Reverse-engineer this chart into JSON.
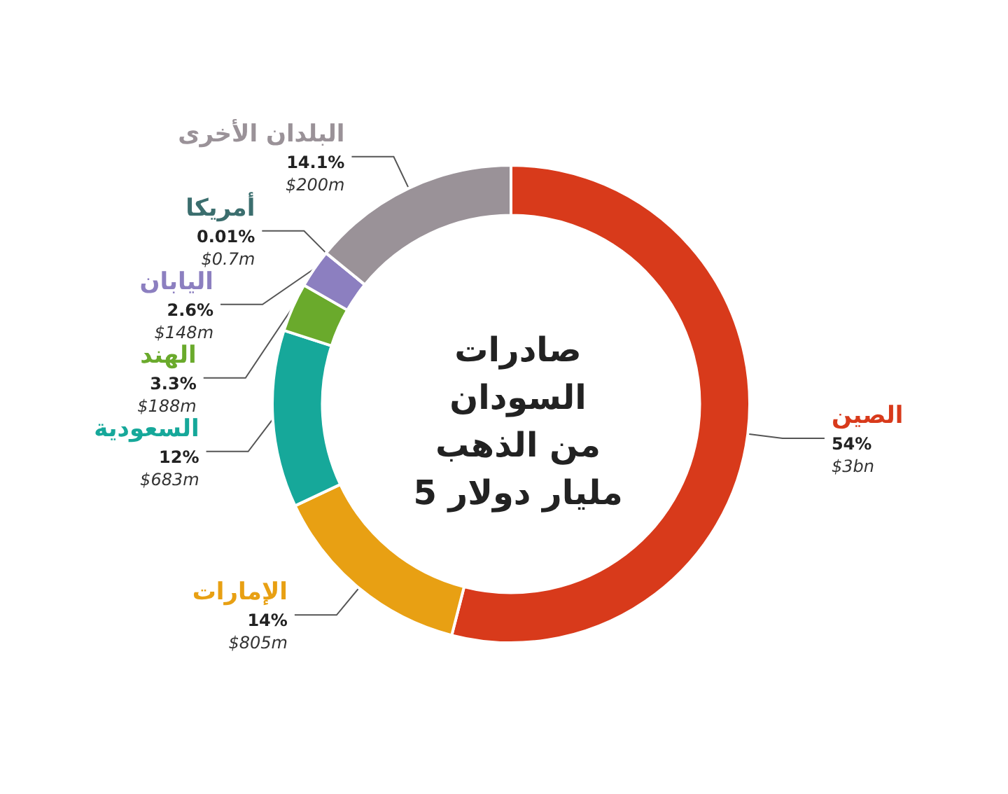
{
  "chart_data": {
    "type": "donut",
    "title": "صادرات\nالسودان\nمن الذهب\n5 مليار دولار",
    "categories": [
      "الصين",
      "الإمارات",
      "السعودية",
      "الهند",
      "اليابان",
      "أمريكا",
      "البلدان الأخرى"
    ],
    "values": [
      54,
      14,
      12,
      3.3,
      2.6,
      0.01,
      14.1
    ],
    "colors": [
      "#d83a1b",
      "#e8a013",
      "#16a89a",
      "#6aaa2c",
      "#8c7fc0",
      "#3b6e6e",
      "#9a9298"
    ],
    "value_labels": [
      "54%\n$3bn",
      "14%\n$805m",
      "12%\n$683m",
      "3.3%\n$188m",
      "2.6%\n$148m",
      "0.01%\n$0.7m",
      "14.1%\n$200m"
    ],
    "legend": false
  }
}
